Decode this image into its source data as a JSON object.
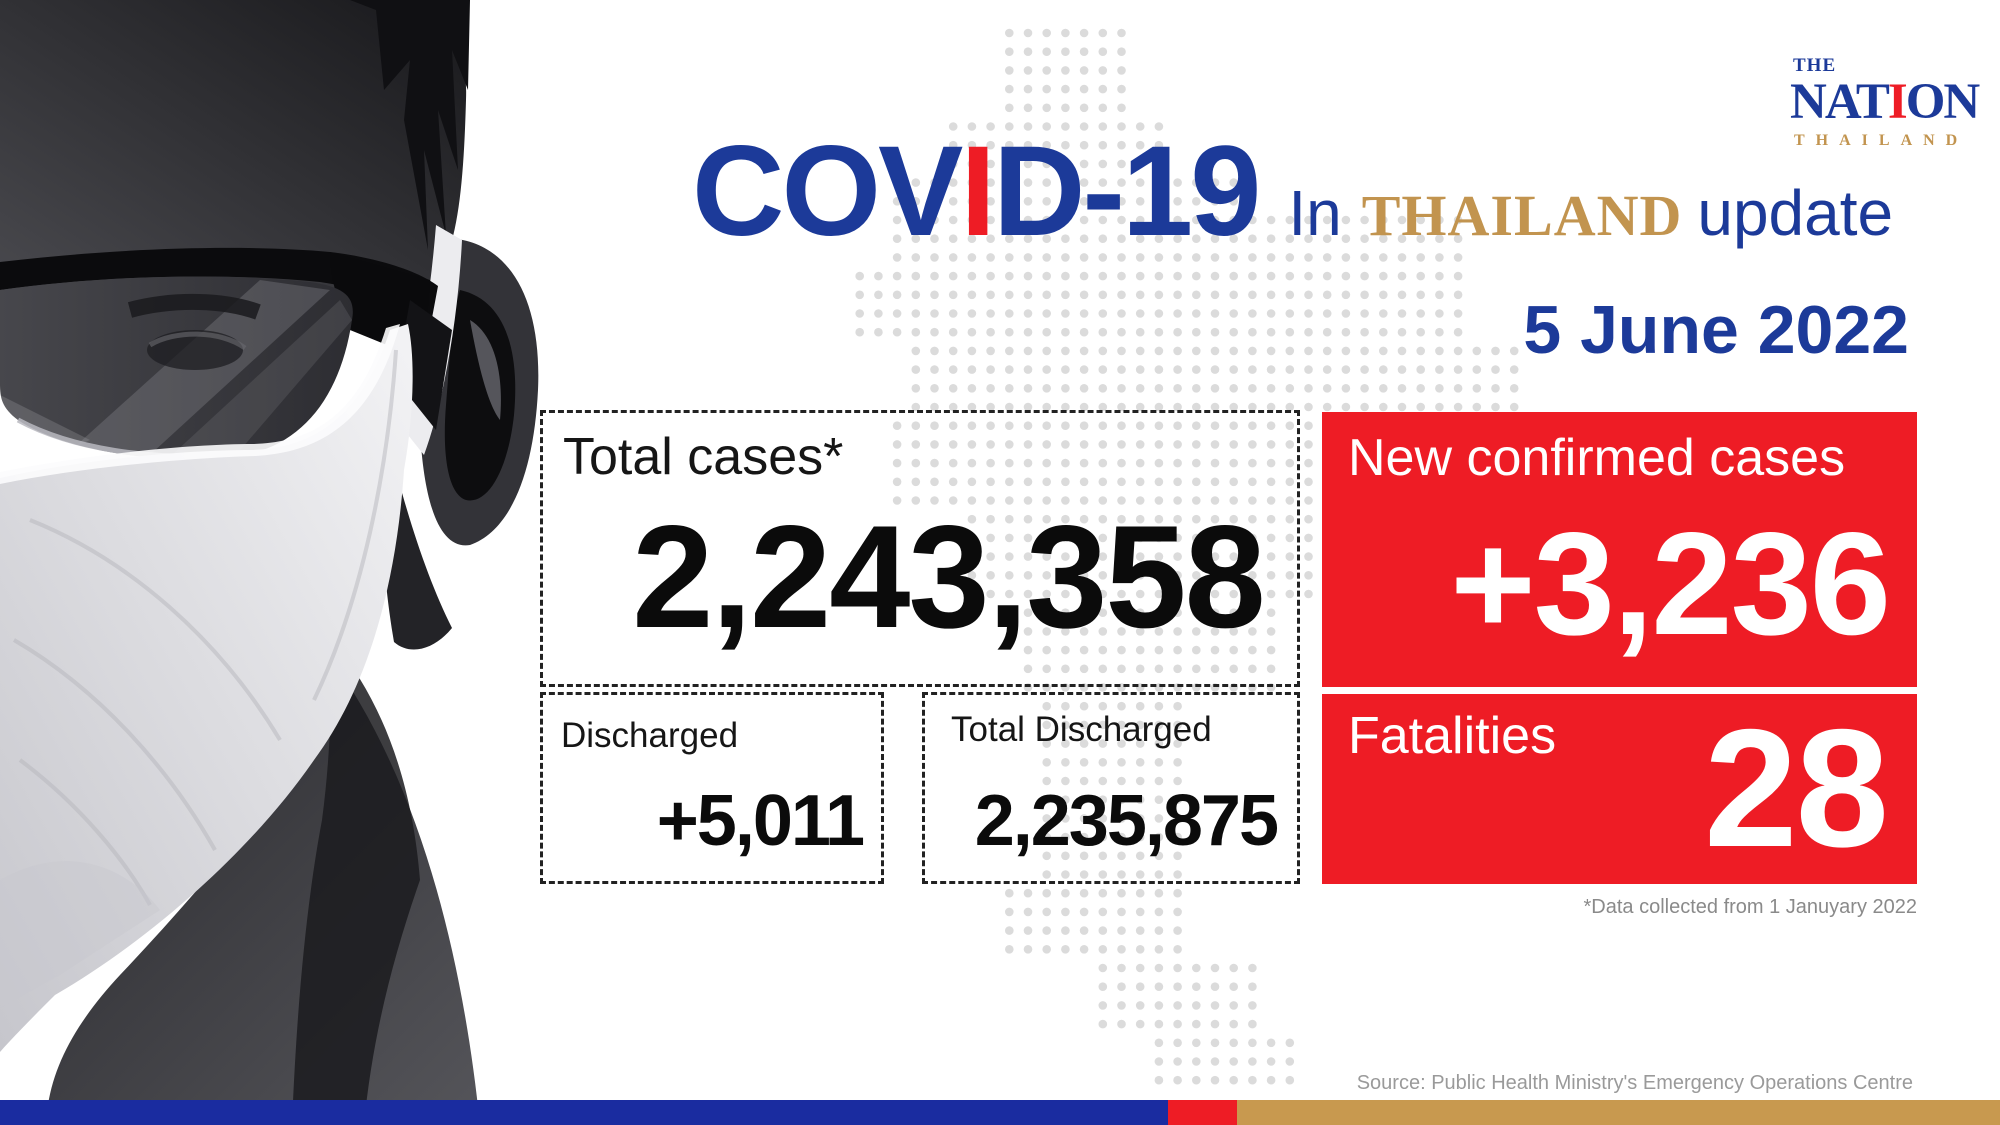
{
  "brand": {
    "the": "THE",
    "nation": {
      "pre": "NAT",
      "i": "I",
      "post": "ON"
    },
    "thailand": "THAILAND"
  },
  "title": {
    "covid": {
      "pre": "COV",
      "i": "I",
      "post": "D-19"
    },
    "in_word": "In",
    "thailand_word": "THAILAND",
    "update_word": "update"
  },
  "date_label": "5 June 2022",
  "stats": {
    "total_cases": {
      "label": "Total cases*",
      "value": "2,243,358"
    },
    "new_confirmed": {
      "label": "New confirmed cases",
      "value": "+3,236"
    },
    "discharged": {
      "label": "Discharged",
      "value": "+5,011"
    },
    "total_discharged": {
      "label": "Total Discharged",
      "value": "2,235,875"
    },
    "fatalities": {
      "label": "Fatalities",
      "value": "28"
    }
  },
  "footnote": "*Data collected from 1 Januyary 2022",
  "source": "Source: Public Health Ministry's Emergency Operations Centre",
  "colors": {
    "blue": "#1C3A99",
    "red": "#EE1C25",
    "gold": "#C2944F",
    "bar_blue": "#1A2CA0",
    "bar_gold": "#C8994F",
    "dot": "#DBDBDB"
  }
}
